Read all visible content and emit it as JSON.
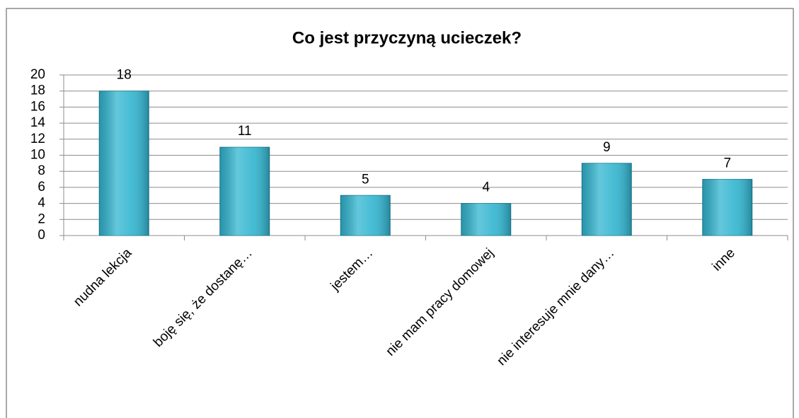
{
  "chart_data": {
    "type": "bar",
    "title": "Co jest przyczyną ucieczek?",
    "categories": [
      "nudna lekcja",
      "boję się, że dostanę…",
      "jestem…",
      "nie mam pracy domowej",
      "nie interesuje mnie dany…",
      "inne"
    ],
    "values": [
      18,
      11,
      5,
      4,
      9,
      7
    ],
    "color": "#31b5d0",
    "ylim": [
      0,
      20
    ],
    "yticks": [
      0,
      2,
      4,
      6,
      8,
      10,
      12,
      14,
      16,
      18,
      20
    ],
    "grid": true
  }
}
